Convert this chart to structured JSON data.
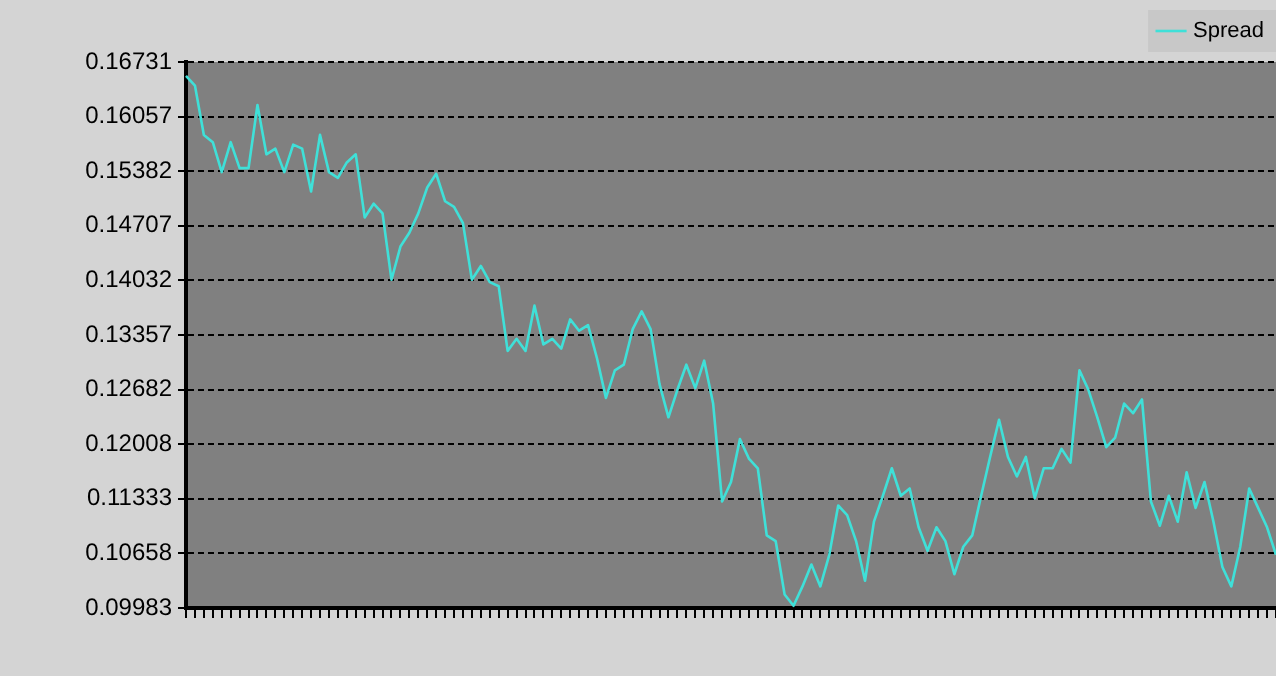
{
  "chart_data": {
    "type": "line",
    "categories": [
      null,
      null,
      null,
      null,
      null,
      null,
      null,
      null,
      null,
      null,
      null,
      null,
      null,
      null,
      null,
      null,
      null,
      null,
      null,
      null,
      null,
      null,
      null,
      null,
      null,
      null,
      null,
      null,
      null,
      null,
      null,
      null,
      null,
      null,
      null,
      null,
      null,
      null,
      null,
      null,
      null,
      null,
      null,
      null,
      null,
      null,
      null,
      null,
      null,
      null,
      null,
      null,
      null,
      null,
      null,
      null,
      null,
      null,
      null,
      null,
      null,
      null,
      null,
      null,
      null,
      null,
      null,
      null,
      null,
      null,
      null,
      null,
      null,
      null,
      null,
      null,
      null,
      null,
      null,
      null,
      null,
      null,
      null,
      null,
      null,
      null,
      null,
      null,
      null,
      null,
      null,
      null,
      null,
      null,
      null,
      null,
      null,
      null,
      null,
      null,
      null,
      null,
      null,
      null,
      null,
      null,
      null,
      null,
      null,
      null,
      null,
      null,
      null,
      null,
      null,
      null,
      null,
      null,
      null,
      null,
      null,
      null,
      null
    ],
    "series": [
      {
        "name": "Spread",
        "color": "#3fe0d8",
        "values": [
          0.1656,
          0.1644,
          0.1583,
          0.1574,
          0.1537,
          0.1574,
          0.1542,
          0.1542,
          0.162,
          0.1559,
          0.1566,
          0.1537,
          0.1571,
          0.1566,
          0.1513,
          0.1583,
          0.1537,
          0.153,
          0.1549,
          0.1559,
          0.1481,
          0.1498,
          0.1486,
          0.1404,
          0.1445,
          0.1462,
          0.1486,
          0.1518,
          0.1535,
          0.1501,
          0.1494,
          0.1474,
          0.1404,
          0.1421,
          0.1401,
          0.1396,
          0.1316,
          0.1331,
          0.1316,
          0.1372,
          0.1324,
          0.1331,
          0.1319,
          0.1355,
          0.1341,
          0.1348,
          0.1307,
          0.1258,
          0.1292,
          0.1299,
          0.1343,
          0.1365,
          0.1343,
          0.1275,
          0.1234,
          0.1268,
          0.1299,
          0.127,
          0.1304,
          0.1251,
          0.113,
          0.1154,
          0.1207,
          0.1183,
          0.1171,
          0.1088,
          0.1081,
          0.1015,
          0.1001,
          0.1025,
          0.1052,
          0.1025,
          0.1064,
          0.1125,
          0.1113,
          0.1081,
          0.1032,
          0.1105,
          0.1137,
          0.1171,
          0.1137,
          0.1146,
          0.1098,
          0.1069,
          0.1098,
          0.1081,
          0.104,
          0.1074,
          0.1088,
          0.1137,
          0.1185,
          0.1231,
          0.1185,
          0.1161,
          0.1185,
          0.1134,
          0.1171,
          0.1171,
          0.1195,
          0.1178,
          0.1292,
          0.1268,
          0.1234,
          0.1197,
          0.1209,
          0.1251,
          0.1239,
          0.1256,
          0.113,
          0.11,
          0.1137,
          0.1105,
          0.1166,
          0.1122,
          0.1154,
          0.1105,
          0.1049,
          0.1025,
          0.1074,
          0.1146,
          0.1122,
          0.1098,
          0.1064
        ]
      }
    ],
    "ylim": [
      0.09983,
      0.16731
    ],
    "yticks": [
      0.09983,
      0.10658,
      0.11333,
      0.12008,
      0.12682,
      0.13357,
      0.14032,
      0.14707,
      0.15382,
      0.16057,
      0.16731
    ],
    "grid": "y",
    "legend": "top right",
    "marker": "none",
    "line_style": "solid",
    "tick_labels": "y"
  }
}
